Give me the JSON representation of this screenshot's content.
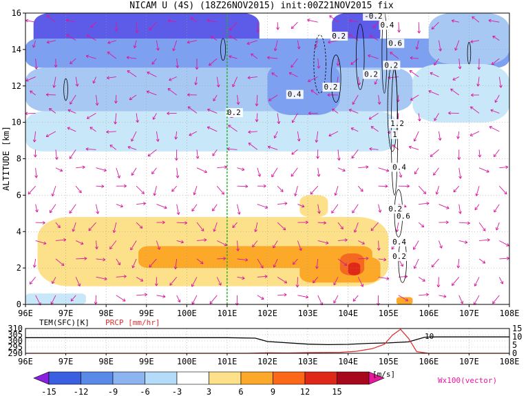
{
  "title": "NICAM U (4S) (18Z26NOV2015) init:00Z21NOV2015 fix",
  "chart_data": [
    {
      "type": "heatmap",
      "title": "NICAM U (4S) (18Z26NOV2015) init:00Z21NOV2015 fix",
      "ylabel": "ALTITUDE [km]",
      "xlim": [
        96,
        108
      ],
      "ylim": [
        0,
        16
      ],
      "x_ticks": [
        "96E",
        "97E",
        "98E",
        "99E",
        "100E",
        "101E",
        "102E",
        "103E",
        "104E",
        "105E",
        "106E",
        "107E",
        "108E"
      ],
      "y_ticks": [
        "0",
        "2",
        "4",
        "6",
        "8",
        "10",
        "12",
        "14",
        "16"
      ],
      "grid": true,
      "marker_line_x": 101.0,
      "contour_labels": [
        "-0.2",
        "0.2",
        "0.4",
        "0.6",
        "0.2",
        "0.2",
        "0.4",
        "0.2",
        "0.2",
        "1.2",
        "1",
        "0.4",
        "0.2",
        "0.6",
        "0.4",
        "0.2"
      ],
      "vector_label": "Wx100(vector)",
      "colorbar": {
        "levels": [
          "-15",
          "-12",
          "-9",
          "-6",
          "-3",
          "3",
          "6",
          "9",
          "12",
          "15"
        ],
        "unit": "[m/s]",
        "colors": [
          "#8a1fe0",
          "#3a5fe0",
          "#5a8ae8",
          "#8cb4f0",
          "#b4dcf8",
          "#ffffff",
          "#fde08a",
          "#fca828",
          "#fc6818",
          "#e02818",
          "#a8081c",
          "#e8189c"
        ]
      },
      "bands": [
        {
          "level": "-12",
          "color": "#5c5ce8",
          "x0": 96.2,
          "x1": 101.8,
          "y0": 14.0,
          "y1": 16.0
        },
        {
          "level": "-12",
          "color": "#5c5ce8",
          "x0": 103.6,
          "x1": 104.8,
          "y0": 14.2,
          "y1": 16.0
        },
        {
          "level": "-9",
          "color": "#7ea0f0",
          "x0": 96.0,
          "x1": 108.0,
          "y0": 13.0,
          "y1": 14.6
        },
        {
          "level": "-6",
          "color": "#a8c8f4",
          "x0": 96.0,
          "x1": 105.6,
          "y0": 10.6,
          "y1": 13.0
        },
        {
          "level": "-6",
          "color": "#a8c8f4",
          "x0": 106.0,
          "x1": 108.0,
          "y0": 13.2,
          "y1": 16.0
        },
        {
          "level": "-3",
          "color": "#c8e8fa",
          "x0": 96.0,
          "x1": 105.2,
          "y0": 8.4,
          "y1": 10.6
        },
        {
          "level": "-3",
          "color": "#c8e8fa",
          "x0": 105.6,
          "x1": 108.0,
          "y0": 10.0,
          "y1": 13.2
        },
        {
          "level": "-9",
          "color": "#7ea0f0",
          "x0": 102.0,
          "x1": 103.8,
          "y0": 10.4,
          "y1": 13.4
        },
        {
          "level": "3",
          "color": "#fde08a",
          "x0": 96.3,
          "x1": 105.0,
          "y0": 1.0,
          "y1": 4.8
        },
        {
          "level": "3",
          "color": "#fde08a",
          "x0": 102.8,
          "x1": 103.5,
          "y0": 4.8,
          "y1": 6.0
        },
        {
          "level": "6",
          "color": "#fca828",
          "x0": 98.8,
          "x1": 104.6,
          "y0": 2.0,
          "y1": 3.2
        },
        {
          "level": "6",
          "color": "#fca828",
          "x0": 102.8,
          "x1": 104.8,
          "y0": 1.2,
          "y1": 2.6
        },
        {
          "level": "9",
          "color": "#f46820",
          "x0": 103.8,
          "x1": 104.4,
          "y0": 1.6,
          "y1": 2.8
        },
        {
          "level": "12",
          "color": "#e02818",
          "x0": 104.0,
          "x1": 104.3,
          "y0": 1.6,
          "y1": 2.3
        },
        {
          "level": "-3",
          "color": "#c8e8fa",
          "x0": 96.0,
          "x1": 97.5,
          "y0": 0.0,
          "y1": 0.6
        },
        {
          "level": "6",
          "color": "#fca828",
          "x0": 105.2,
          "x1": 105.6,
          "y0": 0.0,
          "y1": 0.4
        }
      ]
    },
    {
      "type": "line",
      "labels": [
        "TEM(SFC)[K]",
        "PRCP [mm/hr]"
      ],
      "xlim": [
        96,
        108
      ],
      "x_ticks": [
        "96E",
        "97E",
        "98E",
        "99E",
        "100E",
        "101E",
        "102E",
        "103E",
        "104E",
        "105E",
        "106E",
        "107E",
        "108E"
      ],
      "left_ticks": [
        "310",
        "305",
        "300",
        "295",
        "290"
      ],
      "right_ticks": [
        "15",
        "10",
        "5",
        "0"
      ],
      "annotation": "10",
      "series": [
        {
          "name": "TEM(SFC)[K]",
          "color": "#000000",
          "x": [
            96.0,
            98.0,
            100.0,
            101.0,
            101.7,
            102.0,
            103.0,
            103.5,
            104.0,
            104.5,
            105.0,
            105.5,
            105.9,
            106.2,
            107.0,
            108.0
          ],
          "y": [
            302.6,
            302.6,
            302.6,
            302.6,
            302.2,
            299.5,
            297.4,
            297.0,
            297.2,
            298.0,
            298.4,
            299.2,
            303.0,
            303.2,
            303.2,
            303.2
          ]
        },
        {
          "name": "PRCP [mm/hr]",
          "color": "#e03030",
          "x": [
            96.0,
            101.5,
            102.0,
            102.5,
            103.0,
            103.8,
            104.2,
            104.6,
            104.9,
            105.1,
            105.3,
            105.5,
            105.7,
            106.0,
            108.0
          ],
          "y": [
            0.0,
            0.0,
            0.3,
            0.2,
            0.4,
            0.6,
            1.2,
            2.8,
            5.5,
            11.0,
            14.5,
            9.0,
            1.0,
            0.0,
            0.0
          ]
        }
      ]
    }
  ]
}
